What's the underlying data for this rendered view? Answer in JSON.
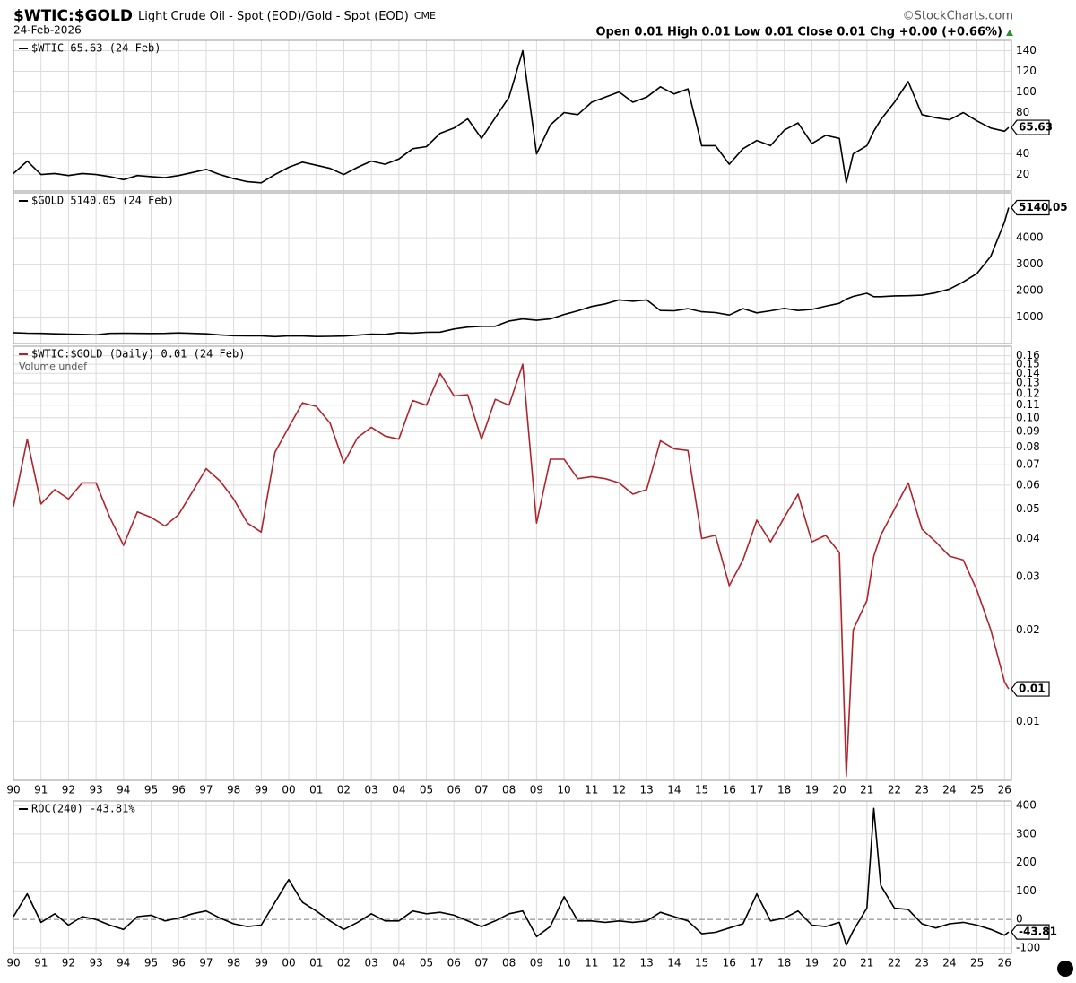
{
  "header": {
    "title": "$WTIC:$GOLD",
    "subtitle": "Light Crude Oil - Spot (EOD)/Gold - Spot (EOD)",
    "exchange": "CME",
    "date": "24-Feb-2026",
    "source": "©StockCharts.com",
    "quote": "Open 0.01  High 0.01  Low 0.01  Close 0.01  Chg +0.00 (+0.66%)"
  },
  "chart_data": [
    {
      "type": "line",
      "grid": true,
      "xlim": [
        1990,
        2026.25
      ],
      "ylim": [
        4,
        150
      ],
      "x": [
        1990,
        1990.5,
        1991,
        1991.5,
        1992,
        1992.5,
        1993,
        1993.5,
        1994,
        1994.5,
        1995,
        1995.5,
        1996,
        1996.5,
        1997,
        1997.5,
        1998,
        1998.5,
        1999,
        1999.5,
        2000,
        2000.5,
        2001,
        2001.5,
        2002,
        2002.5,
        2003,
        2003.5,
        2004,
        2004.5,
        2005,
        2005.5,
        2006,
        2006.5,
        2007,
        2007.5,
        2008,
        2008.5,
        2009,
        2009.5,
        2010,
        2010.5,
        2011,
        2011.5,
        2012,
        2012.5,
        2013,
        2013.5,
        2014,
        2014.5,
        2015,
        2015.5,
        2016,
        2016.5,
        2017,
        2017.5,
        2018,
        2018.5,
        2019,
        2019.5,
        2020,
        2020.25,
        2020.5,
        2021,
        2021.25,
        2021.5,
        2022,
        2022.5,
        2023,
        2023.5,
        2024,
        2024.5,
        2025,
        2025.5,
        2026,
        2026.15
      ],
      "xticks": [
        1990,
        1991,
        1992,
        1993,
        1994,
        1995,
        1996,
        1997,
        1998,
        1999,
        2000,
        2001,
        2002,
        2003,
        2004,
        2005,
        2006,
        2007,
        2008,
        2009,
        2010,
        2011,
        2012,
        2013,
        2014,
        2015,
        2016,
        2017,
        2018,
        2019,
        2020,
        2021,
        2022,
        2023,
        2024,
        2025,
        2026
      ],
      "yticks": [
        20,
        40,
        80,
        100,
        120,
        140
      ],
      "series": [
        {
          "name": "$WTIC 65.63 (24 Feb)",
          "color": "#000000",
          "values": [
            21,
            33,
            20,
            21,
            19,
            21,
            20,
            18,
            15,
            19,
            18,
            17,
            19,
            22,
            25,
            20,
            16,
            13,
            12,
            20,
            27,
            32,
            29,
            26,
            20,
            27,
            33,
            30,
            35,
            45,
            47,
            60,
            65,
            74,
            55,
            75,
            95,
            140,
            40,
            68,
            80,
            78,
            90,
            95,
            100,
            90,
            95,
            105,
            98,
            103,
            48,
            48,
            30,
            45,
            53,
            48,
            63,
            70,
            50,
            58,
            55,
            12,
            40,
            48,
            62,
            73,
            90,
            110,
            78,
            75,
            73,
            80,
            72,
            65,
            62,
            65.63
          ]
        }
      ]
    },
    {
      "type": "line",
      "grid": true,
      "xlim": [
        1990,
        2026.25
      ],
      "ylim": [
        0,
        5700
      ],
      "x": [
        1990,
        1990.5,
        1991,
        1991.5,
        1992,
        1992.5,
        1993,
        1993.5,
        1994,
        1994.5,
        1995,
        1995.5,
        1996,
        1996.5,
        1997,
        1997.5,
        1998,
        1998.5,
        1999,
        1999.5,
        2000,
        2000.5,
        2001,
        2001.5,
        2002,
        2002.5,
        2003,
        2003.5,
        2004,
        2004.5,
        2005,
        2005.5,
        2006,
        2006.5,
        2007,
        2007.5,
        2008,
        2008.5,
        2009,
        2009.5,
        2010,
        2010.5,
        2011,
        2011.5,
        2012,
        2012.5,
        2013,
        2013.5,
        2014,
        2014.5,
        2015,
        2015.5,
        2016,
        2016.5,
        2017,
        2017.5,
        2018,
        2018.5,
        2019,
        2019.5,
        2020,
        2020.25,
        2020.5,
        2021,
        2021.25,
        2021.5,
        2022,
        2022.5,
        2023,
        2023.5,
        2024,
        2024.5,
        2025,
        2025.5,
        2026,
        2026.15
      ],
      "xticks": [
        1990,
        1991,
        1992,
        1993,
        1994,
        1995,
        1996,
        1997,
        1998,
        1999,
        2000,
        2001,
        2002,
        2003,
        2004,
        2005,
        2006,
        2007,
        2008,
        2009,
        2010,
        2011,
        2012,
        2013,
        2014,
        2015,
        2016,
        2017,
        2018,
        2019,
        2020,
        2021,
        2022,
        2023,
        2024,
        2025,
        2026
      ],
      "yticks": [
        1000,
        2000,
        3000,
        4000
      ],
      "series": [
        {
          "name": "$GOLD 5140.05 (24 Feb)",
          "color": "#000000",
          "values": [
            410,
            390,
            385,
            365,
            355,
            345,
            330,
            385,
            390,
            385,
            380,
            385,
            400,
            385,
            365,
            325,
            295,
            290,
            287,
            260,
            290,
            285,
            265,
            270,
            280,
            315,
            355,
            345,
            410,
            395,
            425,
            430,
            550,
            620,
            650,
            650,
            850,
            930,
            880,
            930,
            1100,
            1240,
            1400,
            1500,
            1650,
            1600,
            1650,
            1250,
            1240,
            1320,
            1200,
            1170,
            1080,
            1320,
            1160,
            1240,
            1330,
            1250,
            1290,
            1410,
            1520,
            1680,
            1780,
            1900,
            1770,
            1770,
            1800,
            1810,
            1830,
            1920,
            2060,
            2330,
            2650,
            3300,
            4600,
            5140.05
          ]
        }
      ]
    },
    {
      "type": "line",
      "grid": true,
      "log": true,
      "xlim": [
        1990,
        2026.25
      ],
      "ylim": [
        0.0064,
        0.172
      ],
      "annotation": "Volume undef",
      "x": [
        1990,
        1990.5,
        1991,
        1991.5,
        1992,
        1992.5,
        1993,
        1993.5,
        1994,
        1994.5,
        1995,
        1995.5,
        1996,
        1996.5,
        1997,
        1997.5,
        1998,
        1998.5,
        1999,
        1999.5,
        2000,
        2000.5,
        2001,
        2001.5,
        2002,
        2002.5,
        2003,
        2003.5,
        2004,
        2004.5,
        2005,
        2005.5,
        2006,
        2006.5,
        2007,
        2007.5,
        2008,
        2008.5,
        2009,
        2009.5,
        2010,
        2010.5,
        2011,
        2011.5,
        2012,
        2012.5,
        2013,
        2013.5,
        2014,
        2014.5,
        2015,
        2015.5,
        2016,
        2016.5,
        2017,
        2017.5,
        2018,
        2018.5,
        2019,
        2019.5,
        2020,
        2020.25,
        2020.5,
        2021,
        2021.25,
        2021.5,
        2022,
        2022.5,
        2023,
        2023.5,
        2024,
        2024.5,
        2025,
        2025.5,
        2026,
        2026.15
      ],
      "xticks": [
        {
          "value": 1990,
          "label": "90"
        },
        {
          "value": 1991,
          "label": "91"
        },
        {
          "value": 1992,
          "label": "92"
        },
        {
          "value": 1993,
          "label": "93"
        },
        {
          "value": 1994,
          "label": "94"
        },
        {
          "value": 1995,
          "label": "95"
        },
        {
          "value": 1996,
          "label": "96"
        },
        {
          "value": 1997,
          "label": "97"
        },
        {
          "value": 1998,
          "label": "98"
        },
        {
          "value": 1999,
          "label": "99"
        },
        {
          "value": 2000,
          "label": "00"
        },
        {
          "value": 2001,
          "label": "01"
        },
        {
          "value": 2002,
          "label": "02"
        },
        {
          "value": 2003,
          "label": "03"
        },
        {
          "value": 2004,
          "label": "04"
        },
        {
          "value": 2005,
          "label": "05"
        },
        {
          "value": 2006,
          "label": "06"
        },
        {
          "value": 2007,
          "label": "07"
        },
        {
          "value": 2008,
          "label": "08"
        },
        {
          "value": 2009,
          "label": "09"
        },
        {
          "value": 2010,
          "label": "10"
        },
        {
          "value": 2011,
          "label": "11"
        },
        {
          "value": 2012,
          "label": "12"
        },
        {
          "value": 2013,
          "label": "13"
        },
        {
          "value": 2014,
          "label": "14"
        },
        {
          "value": 2015,
          "label": "15"
        },
        {
          "value": 2016,
          "label": "16"
        },
        {
          "value": 2017,
          "label": "17"
        },
        {
          "value": 2018,
          "label": "18"
        },
        {
          "value": 2019,
          "label": "19"
        },
        {
          "value": 2020,
          "label": "20"
        },
        {
          "value": 2021,
          "label": "21"
        },
        {
          "value": 2022,
          "label": "22"
        },
        {
          "value": 2023,
          "label": "23"
        },
        {
          "value": 2024,
          "label": "24"
        },
        {
          "value": 2025,
          "label": "25"
        },
        {
          "value": 2026,
          "label": "26"
        }
      ],
      "yticks": [
        0.16,
        0.15,
        0.14,
        0.13,
        0.12,
        0.11,
        {
          "value": 0.1,
          "label": "0.10"
        },
        0.09,
        0.08,
        0.07,
        0.06,
        0.05,
        0.04,
        0.03,
        0.02,
        0.01
      ],
      "series": [
        {
          "name": "$WTIC:$GOLD (Daily) 0.01 (24 Feb)",
          "color": "#b0252d",
          "values": [
            0.051,
            0.085,
            0.052,
            0.058,
            0.054,
            0.061,
            0.061,
            0.047,
            0.038,
            0.049,
            0.047,
            0.044,
            0.048,
            0.057,
            0.068,
            0.062,
            0.054,
            0.045,
            0.042,
            0.077,
            0.093,
            0.112,
            0.109,
            0.096,
            0.071,
            0.086,
            0.093,
            0.087,
            0.085,
            0.114,
            0.11,
            0.14,
            0.118,
            0.119,
            0.085,
            0.115,
            0.11,
            0.15,
            0.045,
            0.073,
            0.073,
            0.063,
            0.064,
            0.063,
            0.061,
            0.056,
            0.058,
            0.084,
            0.079,
            0.078,
            0.04,
            0.041,
            0.028,
            0.034,
            0.046,
            0.039,
            0.047,
            0.056,
            0.039,
            0.041,
            0.036,
            0.0066,
            0.02,
            0.025,
            0.035,
            0.041,
            0.05,
            0.061,
            0.043,
            0.039,
            0.035,
            0.034,
            0.027,
            0.02,
            0.0135,
            0.0128
          ],
          "value_labels": [
            null,
            null,
            null,
            null,
            null,
            null,
            null,
            null,
            null,
            null,
            null,
            null,
            null,
            null,
            null,
            null,
            null,
            null,
            null,
            null,
            null,
            null,
            null,
            null,
            null,
            null,
            null,
            null,
            null,
            null,
            null,
            null,
            null,
            null,
            null,
            null,
            null,
            null,
            null,
            null,
            null,
            null,
            null,
            null,
            null,
            null,
            null,
            null,
            null,
            null,
            null,
            null,
            null,
            null,
            null,
            null,
            null,
            null,
            null,
            null,
            null,
            null,
            null,
            null,
            null,
            null,
            null,
            null,
            null,
            null,
            null,
            null,
            null,
            null,
            null,
            "0.01"
          ]
        }
      ]
    },
    {
      "type": "line",
      "grid": true,
      "dashed_zero_line": true,
      "xlim": [
        1990,
        2026.25
      ],
      "ylim": [
        -119,
        416
      ],
      "x": [
        1990,
        1990.5,
        1991,
        1991.5,
        1992,
        1992.5,
        1993,
        1993.5,
        1994,
        1994.5,
        1995,
        1995.5,
        1996,
        1996.5,
        1997,
        1997.5,
        1998,
        1998.5,
        1999,
        1999.5,
        2000,
        2000.5,
        2001,
        2001.5,
        2002,
        2002.5,
        2003,
        2003.5,
        2004,
        2004.5,
        2005,
        2005.5,
        2006,
        2006.5,
        2007,
        2007.5,
        2008,
        2008.5,
        2009,
        2009.5,
        2010,
        2010.5,
        2011,
        2011.5,
        2012,
        2012.5,
        2013,
        2013.5,
        2014,
        2014.5,
        2015,
        2015.5,
        2016,
        2016.5,
        2017,
        2017.5,
        2018,
        2018.5,
        2019,
        2019.5,
        2020,
        2020.25,
        2020.5,
        2021,
        2021.25,
        2021.5,
        2022,
        2022.5,
        2023,
        2023.5,
        2024,
        2024.5,
        2025,
        2025.5,
        2026,
        2026.15
      ],
      "xticks": [
        {
          "value": 1990,
          "label": "90"
        },
        {
          "value": 1991,
          "label": "91"
        },
        {
          "value": 1992,
          "label": "92"
        },
        {
          "value": 1993,
          "label": "93"
        },
        {
          "value": 1994,
          "label": "94"
        },
        {
          "value": 1995,
          "label": "95"
        },
        {
          "value": 1996,
          "label": "96"
        },
        {
          "value": 1997,
          "label": "97"
        },
        {
          "value": 1998,
          "label": "98"
        },
        {
          "value": 1999,
          "label": "99"
        },
        {
          "value": 2000,
          "label": "00"
        },
        {
          "value": 2001,
          "label": "01"
        },
        {
          "value": 2002,
          "label": "02"
        },
        {
          "value": 2003,
          "label": "03"
        },
        {
          "value": 2004,
          "label": "04"
        },
        {
          "value": 2005,
          "label": "05"
        },
        {
          "value": 2006,
          "label": "06"
        },
        {
          "value": 2007,
          "label": "07"
        },
        {
          "value": 2008,
          "label": "08"
        },
        {
          "value": 2009,
          "label": "09"
        },
        {
          "value": 2010,
          "label": "10"
        },
        {
          "value": 2011,
          "label": "11"
        },
        {
          "value": 2012,
          "label": "12"
        },
        {
          "value": 2013,
          "label": "13"
        },
        {
          "value": 2014,
          "label": "14"
        },
        {
          "value": 2015,
          "label": "15"
        },
        {
          "value": 2016,
          "label": "16"
        },
        {
          "value": 2017,
          "label": "17"
        },
        {
          "value": 2018,
          "label": "18"
        },
        {
          "value": 2019,
          "label": "19"
        },
        {
          "value": 2020,
          "label": "20"
        },
        {
          "value": 2021,
          "label": "21"
        },
        {
          "value": 2022,
          "label": "22"
        },
        {
          "value": 2023,
          "label": "23"
        },
        {
          "value": 2024,
          "label": "24"
        },
        {
          "value": 2025,
          "label": "25"
        },
        {
          "value": 2026,
          "label": "26"
        }
      ],
      "yticks": [
        400,
        300,
        200,
        100,
        0,
        -100
      ],
      "series": [
        {
          "name": "ROC(240) -43.81%",
          "color": "#000000",
          "values": [
            10,
            90,
            -10,
            20,
            -20,
            10,
            0,
            -20,
            -35,
            10,
            15,
            -5,
            5,
            20,
            30,
            5,
            -15,
            -25,
            -20,
            60,
            140,
            60,
            30,
            -5,
            -35,
            -10,
            20,
            -5,
            -5,
            30,
            20,
            25,
            15,
            -5,
            -25,
            -5,
            20,
            30,
            -60,
            -25,
            80,
            -5,
            -5,
            -10,
            -5,
            -10,
            -5,
            25,
            10,
            -5,
            -50,
            -45,
            -30,
            -15,
            90,
            -5,
            5,
            30,
            -20,
            -25,
            -10,
            -90,
            -40,
            40,
            390,
            120,
            40,
            35,
            -15,
            -30,
            -15,
            -10,
            -20,
            -35,
            -55,
            -43.81
          ]
        }
      ]
    }
  ]
}
